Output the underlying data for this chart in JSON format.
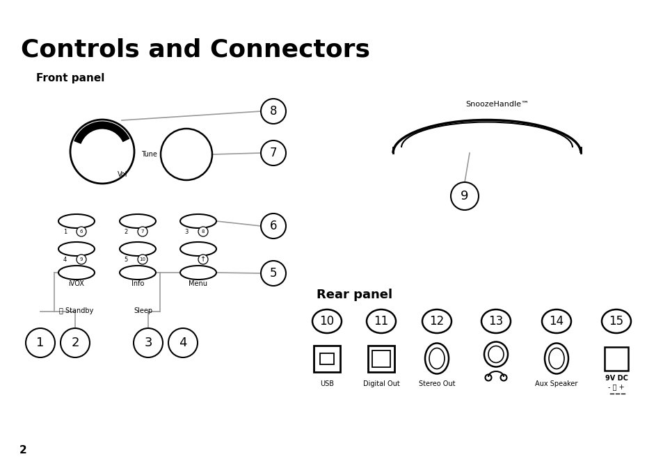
{
  "title": "Controls and Connectors",
  "front_panel_label": "Front panel",
  "rear_panel_label": "Rear panel",
  "bg_color": "#ffffff",
  "line_color": "#000000",
  "gray_color": "#999999",
  "page_number": "2"
}
